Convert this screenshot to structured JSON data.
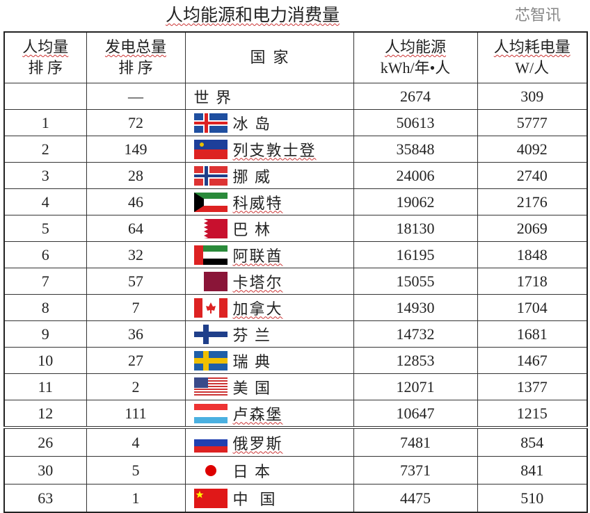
{
  "title": "人均能源和电力消费量",
  "headers": {
    "rank_per_capita": [
      "人均量",
      "排 序"
    ],
    "rank_total": [
      "发电总量",
      "排 序"
    ],
    "country": "国  家",
    "energy": [
      "人均能源",
      "kWh/年•人"
    ],
    "power": [
      "人均耗电量",
      "W/人"
    ]
  },
  "rows": [
    {
      "rank": "",
      "total_rank": "—",
      "country": "世 界",
      "flag": "none",
      "energy": "2674",
      "power": "309"
    },
    {
      "rank": "1",
      "total_rank": "72",
      "country": "冰 岛",
      "flag": "iceland",
      "energy": "50613",
      "power": "5777"
    },
    {
      "rank": "2",
      "total_rank": "149",
      "country": "列支敦士登",
      "flag": "liechtenstein",
      "energy": "35848",
      "power": "4092"
    },
    {
      "rank": "3",
      "total_rank": "28",
      "country": "挪 威",
      "flag": "norway",
      "energy": "24006",
      "power": "2740"
    },
    {
      "rank": "4",
      "total_rank": "46",
      "country": "科威特",
      "flag": "kuwait",
      "energy": "19062",
      "power": "2176"
    },
    {
      "rank": "5",
      "total_rank": "64",
      "country": "巴 林",
      "flag": "bahrain",
      "energy": "18130",
      "power": "2069"
    },
    {
      "rank": "6",
      "total_rank": "32",
      "country": "阿联酋",
      "flag": "uae",
      "energy": "16195",
      "power": "1848"
    },
    {
      "rank": "7",
      "total_rank": "57",
      "country": "卡塔尔",
      "flag": "qatar",
      "energy": "15055",
      "power": "1718"
    },
    {
      "rank": "8",
      "total_rank": "7",
      "country": "加拿大",
      "flag": "canada",
      "energy": "14930",
      "power": "1704"
    },
    {
      "rank": "9",
      "total_rank": "36",
      "country": "芬 兰",
      "flag": "finland",
      "energy": "14732",
      "power": "1681"
    },
    {
      "rank": "10",
      "total_rank": "27",
      "country": "瑞 典",
      "flag": "sweden",
      "energy": "12853",
      "power": "1467"
    },
    {
      "rank": "11",
      "total_rank": "2",
      "country": "美 国",
      "flag": "usa",
      "energy": "12071",
      "power": "1377"
    },
    {
      "rank": "12",
      "total_rank": "111",
      "country": "卢森堡",
      "flag": "luxembourg",
      "energy": "10647",
      "power": "1215"
    },
    {
      "rank": "26",
      "total_rank": "4",
      "country": "俄罗斯",
      "flag": "russia",
      "energy": "7481",
      "power": "854"
    },
    {
      "rank": "30",
      "total_rank": "5",
      "country": "日 本",
      "flag": "japan",
      "energy": "7371",
      "power": "841"
    },
    {
      "rank": "63",
      "total_rank": "1",
      "country": "中  国",
      "flag": "china",
      "energy": "4475",
      "power": "510"
    }
  ],
  "watermark": "芯智讯"
}
